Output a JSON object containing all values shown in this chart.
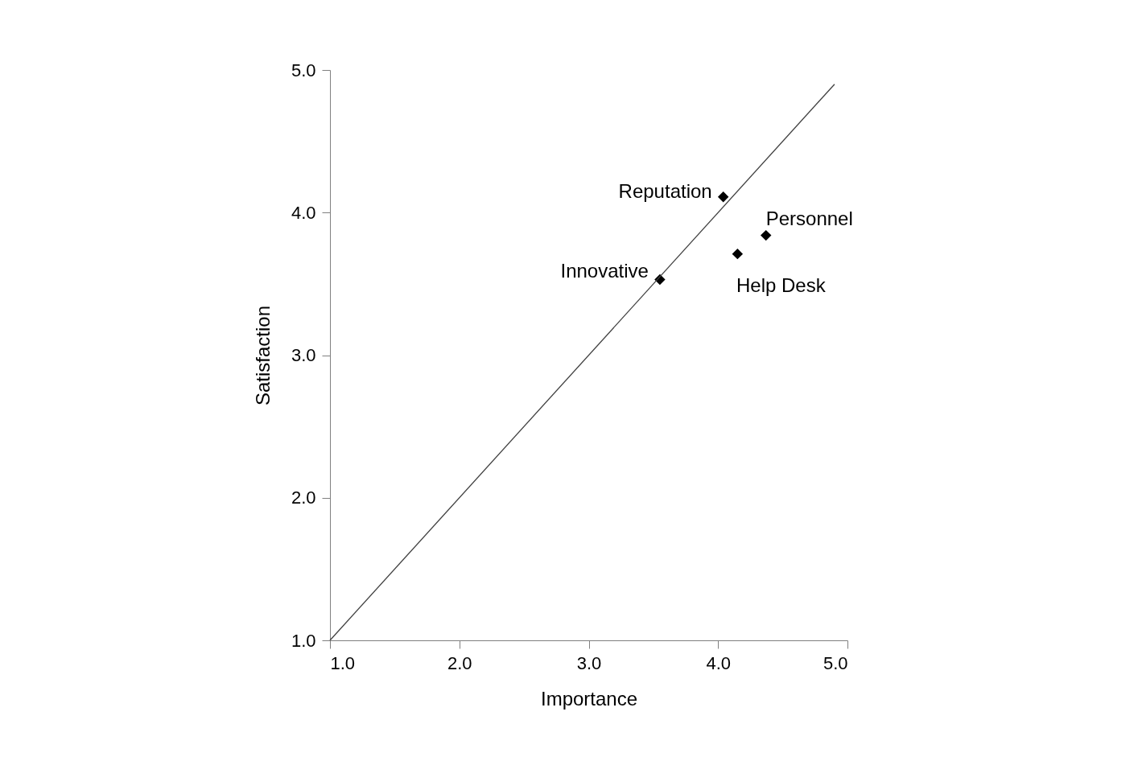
{
  "chart_data": {
    "type": "scatter",
    "xlabel": "Importance",
    "ylabel": "Satisfaction",
    "xlim": [
      1,
      5
    ],
    "ylim": [
      1,
      5
    ],
    "xticks": [
      {
        "value": 1,
        "label": "1.0"
      },
      {
        "value": 2,
        "label": "2.0"
      },
      {
        "value": 3,
        "label": "3.0"
      },
      {
        "value": 4,
        "label": "4.0"
      },
      {
        "value": 5,
        "label": "5.0"
      }
    ],
    "yticks": [
      {
        "value": 1,
        "label": "1.0"
      },
      {
        "value": 2,
        "label": "2.0"
      },
      {
        "value": 3,
        "label": "3.0"
      },
      {
        "value": 4,
        "label": "4.0"
      },
      {
        "value": 5,
        "label": "5.0"
      }
    ],
    "series": [
      {
        "color": "#000000",
        "x": [
          4.04,
          4.37,
          4.15,
          3.55
        ],
        "values": [
          4.11,
          3.84,
          3.71,
          3.53
        ]
      },
      {
        "type": "line",
        "marker": "none",
        "color": "#404040",
        "x": [
          1,
          4.9
        ],
        "values": [
          1,
          4.9
        ]
      }
    ],
    "annotations": [
      {
        "text": "Reputation",
        "x": 4.04,
        "y": 4.11
      },
      {
        "text": "Personnel",
        "x": 4.37,
        "y": 3.84
      },
      {
        "text": "Help Desk",
        "x": 4.15,
        "y": 3.71
      },
      {
        "text": "Innovative",
        "x": 3.55,
        "y": 3.53
      }
    ],
    "marker": "diamond",
    "line_style": "solid"
  }
}
